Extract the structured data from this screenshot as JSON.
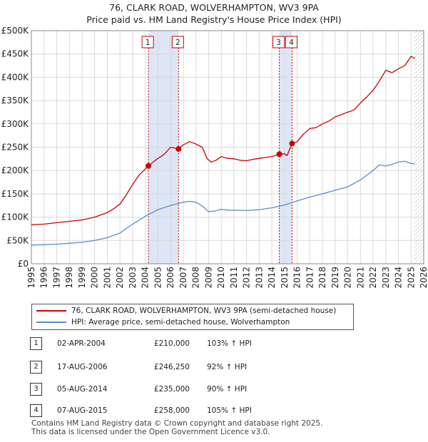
{
  "title_line1": "76, CLARK ROAD, WOLVERHAMPTON, WV3 9PA",
  "title_line2": "Price paid vs. HM Land Registry's House Price Index (HPI)",
  "chart_data": {
    "type": "line",
    "xlim": [
      1995,
      2026
    ],
    "ylim": [
      0,
      500000
    ],
    "y_ticks": [
      0,
      50000,
      100000,
      150000,
      200000,
      250000,
      300000,
      350000,
      400000,
      450000,
      500000
    ],
    "y_tick_labels": [
      "£0",
      "£50K",
      "£100K",
      "£150K",
      "£200K",
      "£250K",
      "£300K",
      "£350K",
      "£400K",
      "£450K",
      "£500K"
    ],
    "x_ticks": [
      1995,
      1996,
      1997,
      1998,
      1999,
      2000,
      2001,
      2002,
      2003,
      2004,
      2005,
      2006,
      2007,
      2008,
      2009,
      2010,
      2011,
      2012,
      2013,
      2014,
      2015,
      2016,
      2017,
      2018,
      2019,
      2020,
      2021,
      2022,
      2023,
      2024,
      2025,
      2026
    ],
    "x_tick_labels": [
      "1995",
      "1996",
      "1997",
      "1998",
      "1999",
      "2000",
      "2001",
      "2002",
      "2003",
      "2004",
      "2005",
      "2006",
      "2007",
      "2008",
      "2009",
      "2010",
      "2011",
      "2012",
      "2013",
      "2014",
      "2015",
      "2016",
      "2017",
      "2018",
      "2019",
      "2020",
      "2021",
      "2022",
      "2023",
      "2024",
      "2025",
      "2026"
    ],
    "grid": true,
    "series": [
      {
        "name": "76, CLARK ROAD, WOLVERHAMPTON, WV3 9PA (semi-detached house)",
        "color": "#cc0000",
        "x": [
          1995.0,
          1996.0,
          1997.0,
          1998.0,
          1999.0,
          2000.0,
          2001.0,
          2001.5,
          2002.0,
          2002.5,
          2003.0,
          2003.5,
          2004.25,
          2004.8,
          2005.5,
          2006.0,
          2006.63,
          2007.0,
          2007.5,
          2007.9,
          2008.5,
          2008.9,
          2009.2,
          2009.6,
          2010.0,
          2010.5,
          2011.0,
          2011.5,
          2012.0,
          2012.5,
          2013.0,
          2013.5,
          2014.0,
          2014.59,
          2015.0,
          2015.2,
          2015.6,
          2016.0,
          2016.5,
          2017.0,
          2017.5,
          2018.0,
          2018.5,
          2019.0,
          2019.5,
          2020.0,
          2020.5,
          2021.0,
          2021.5,
          2022.0,
          2022.5,
          2023.0,
          2023.5,
          2024.0,
          2024.5,
          2025.0,
          2025.3
        ],
        "values": [
          84000,
          85000,
          88000,
          91000,
          94000,
          100000,
          110000,
          118000,
          128000,
          148000,
          170000,
          190000,
          210000,
          222000,
          235000,
          250000,
          246250,
          255000,
          262000,
          258000,
          250000,
          225000,
          218000,
          222000,
          230000,
          226000,
          225000,
          222000,
          221000,
          224000,
          226000,
          228000,
          230000,
          235000,
          236000,
          232000,
          258000,
          262000,
          278000,
          290000,
          292000,
          300000,
          306000,
          315000,
          320000,
          325000,
          330000,
          345000,
          358000,
          372000,
          392000,
          415000,
          410000,
          418000,
          425000,
          445000,
          440000
        ]
      },
      {
        "name": "HPI: Average price, semi-detached house, Wolverhampton",
        "color": "#5b8ec9",
        "x": [
          1995.0,
          1996.0,
          1997.0,
          1998.0,
          1999.0,
          2000.0,
          2001.0,
          2002.0,
          2003.0,
          2004.0,
          2005.0,
          2006.0,
          2007.0,
          2007.5,
          2008.0,
          2008.5,
          2009.0,
          2009.5,
          2010.0,
          2010.5,
          2011.0,
          2012.0,
          2013.0,
          2014.0,
          2015.0,
          2016.0,
          2017.0,
          2018.0,
          2019.0,
          2020.0,
          2021.0,
          2022.0,
          2022.5,
          2023.0,
          2023.5,
          2024.0,
          2024.5,
          2025.0,
          2025.3
        ],
        "values": [
          40000,
          41000,
          42000,
          44000,
          46000,
          50000,
          56000,
          66000,
          85000,
          102000,
          116000,
          125000,
          132000,
          134000,
          132000,
          124000,
          112000,
          113000,
          117000,
          115000,
          115000,
          114000,
          116000,
          120000,
          126000,
          135000,
          143000,
          150000,
          158000,
          165000,
          180000,
          200000,
          212000,
          210000,
          213000,
          218000,
          220000,
          215000,
          214000
        ]
      }
    ],
    "sales": [
      {
        "label": "1",
        "x": 2004.25,
        "value": 210000
      },
      {
        "label": "2",
        "x": 2006.63,
        "value": 246250
      },
      {
        "label": "3",
        "x": 2014.59,
        "value": 235000
      },
      {
        "label": "4",
        "x": 2015.6,
        "value": 258000
      }
    ],
    "highlight_spans": [
      [
        2004.25,
        2006.63
      ],
      [
        2014.59,
        2015.6
      ]
    ],
    "hatch_from": 2025.25
  },
  "legend": {
    "property_label": "76, CLARK ROAD, WOLVERHAMPTON, WV3 9PA (semi-detached house)",
    "hpi_label": "HPI: Average price, semi-detached house, Wolverhampton"
  },
  "colors": {
    "property": "#cc0000",
    "hpi": "#5b8ec9",
    "highlight": "#dde6f7"
  },
  "sales_table": [
    {
      "num": "1",
      "date": "02-APR-2004",
      "price": "£210,000",
      "hpi": "103% ↑ HPI"
    },
    {
      "num": "2",
      "date": "17-AUG-2006",
      "price": "£246,250",
      "hpi": "92% ↑ HPI"
    },
    {
      "num": "3",
      "date": "05-AUG-2014",
      "price": "£235,000",
      "hpi": "90% ↑ HPI"
    },
    {
      "num": "4",
      "date": "07-AUG-2015",
      "price": "£258,000",
      "hpi": "105% ↑ HPI"
    }
  ],
  "footer_line1": "Contains HM Land Registry data © Crown copyright and database right 2025.",
  "footer_line2": "This data is licensed under the Open Government Licence v3.0."
}
